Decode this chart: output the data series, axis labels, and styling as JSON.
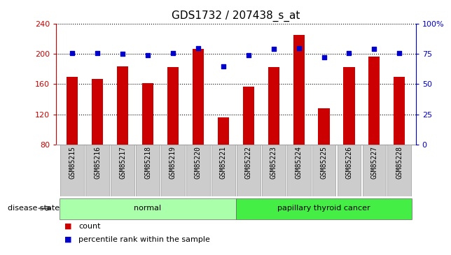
{
  "title": "GDS1732 / 207438_s_at",
  "categories": [
    "GSM85215",
    "GSM85216",
    "GSM85217",
    "GSM85218",
    "GSM85219",
    "GSM85220",
    "GSM85221",
    "GSM85222",
    "GSM85223",
    "GSM85224",
    "GSM85225",
    "GSM85226",
    "GSM85227",
    "GSM85228"
  ],
  "counts": [
    170,
    167,
    184,
    161,
    183,
    207,
    116,
    157,
    183,
    225,
    128,
    183,
    197,
    170
  ],
  "percentiles": [
    76,
    76,
    75,
    74,
    76,
    80,
    65,
    74,
    79,
    80,
    72,
    76,
    79,
    76
  ],
  "bar_color": "#cc0000",
  "dot_color": "#0000cc",
  "ylim_left": [
    80,
    240
  ],
  "ylim_right": [
    0,
    100
  ],
  "yticks_left": [
    80,
    120,
    160,
    200,
    240
  ],
  "yticks_right": [
    0,
    25,
    50,
    75,
    100
  ],
  "groups": [
    {
      "label": "normal",
      "start": 0,
      "end": 7,
      "color": "#aaffaa"
    },
    {
      "label": "papillary thyroid cancer",
      "start": 7,
      "end": 14,
      "color": "#44ee44"
    }
  ],
  "disease_state_label": "disease state",
  "legend_items": [
    {
      "color": "#cc0000",
      "label": "count"
    },
    {
      "color": "#0000cc",
      "label": "percentile rank within the sample"
    }
  ],
  "background_color": "#ffffff",
  "title_fontsize": 11,
  "tick_label_fontsize": 7,
  "axis_label_color_left": "#cc0000",
  "axis_label_color_right": "#0000cc",
  "bar_width": 0.45,
  "xlim": [
    -0.65,
    13.65
  ]
}
